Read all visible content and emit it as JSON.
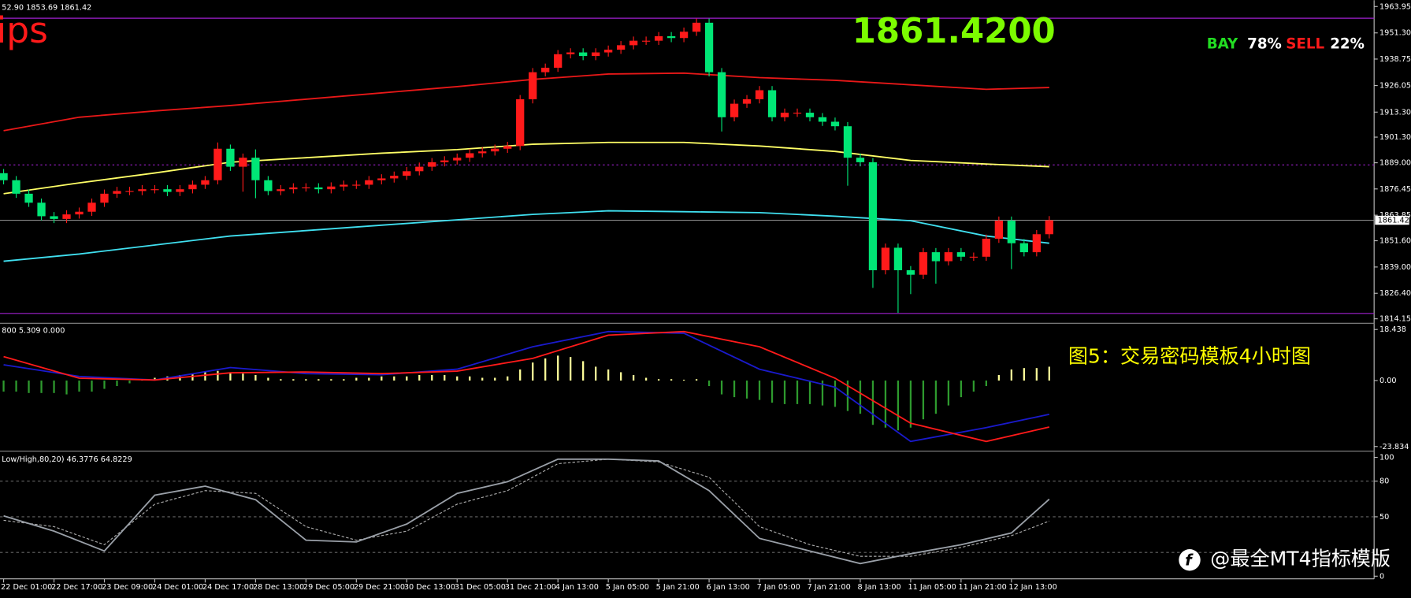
{
  "watermark": "@最全MT4指标模版",
  "chart_data": [
    {
      "type": "candlestick",
      "header": "52.90 1853.69 1861.42",
      "title": "ips",
      "price_display": "1861.4200",
      "sentiment": {
        "buy_label": "BAY",
        "buy_value": "78%",
        "sell_label": "SELL",
        "sell_value": "22%"
      },
      "up_color": "#ff1a1a",
      "down_color": "#00e676",
      "categories": [
        "22 Dec 01:00",
        null,
        null,
        null,
        "22 Dec 17:00",
        null,
        null,
        null,
        "23 Dec 09:00",
        null,
        null,
        null,
        "24 Dec 01:00",
        null,
        null,
        null,
        "24 Dec 17:00",
        null,
        null,
        null,
        "28 Dec 13:00",
        null,
        null,
        null,
        "29 Dec 05:00",
        null,
        null,
        null,
        "29 Dec 21:00",
        null,
        null,
        null,
        "30 Dec 13:00",
        null,
        null,
        null,
        "31 Dec 05:00",
        null,
        null,
        null,
        "31 Dec 21:00",
        null,
        null,
        null,
        "4 Jan 13:00",
        null,
        null,
        null,
        "5 Jan 05:00",
        null,
        null,
        null,
        "5 Jan 21:00",
        null,
        null,
        null,
        "6 Jan 13:00",
        null,
        null,
        null,
        "7 Jan 05:00",
        null,
        null,
        null,
        "7 Jan 21:00",
        null,
        null,
        null,
        "8 Jan 13:00",
        null,
        null,
        null,
        "11 Jan 05:00",
        null,
        null,
        null,
        "11 Jan 21:00",
        null,
        null,
        null,
        "12 Jan 13:00",
        null,
        null,
        null
      ],
      "open": [
        1884.0,
        1880.63,
        1874.16,
        1869.84,
        1863.36,
        1862.07,
        1864.23,
        1865.52,
        1869.84,
        1874.16,
        1875.45,
        1875.45,
        1876.31,
        1876.31,
        1875.02,
        1876.31,
        1878.47,
        1880.63,
        1895.74,
        1887.11,
        1891.42,
        1880.63,
        1875.45,
        1876.31,
        1877.18,
        1877.18,
        1876.31,
        1877.61,
        1878.47,
        1878.47,
        1880.63,
        1881.5,
        1882.79,
        1884.95,
        1887.11,
        1889.27,
        1890.13,
        1891.42,
        1893.58,
        1894.45,
        1895.74,
        1897.04,
        1919.48,
        1932.44,
        1934.59,
        1941.07,
        1941.93,
        1940.21,
        1941.93,
        1943.23,
        1945.39,
        1947.55,
        1947.55,
        1949.7,
        1948.84,
        1951.86,
        1956.18,
        1932.44,
        1910.85,
        1917.33,
        1919.48,
        1923.8,
        1910.85,
        1913.01,
        1913.01,
        1910.85,
        1908.69,
        1906.53,
        1891.42,
        1889.27,
        1837.46,
        1848.25,
        1837.46,
        1835.3,
        1846.1,
        1841.78,
        1846.1,
        1843.94,
        1843.94,
        1852.57,
        1861.21,
        1850.41,
        1846.1,
        1854.73
      ],
      "high": [
        1886.0,
        1882.63,
        1876.16,
        1871.84,
        1865.36,
        1866.23,
        1867.52,
        1871.84,
        1876.16,
        1877.45,
        1877.45,
        1878.31,
        1878.31,
        1878.31,
        1878.31,
        1880.47,
        1882.63,
        1898.74,
        1897.74,
        1893.42,
        1895.42,
        1882.63,
        1878.31,
        1879.18,
        1879.18,
        1879.18,
        1879.61,
        1880.47,
        1880.47,
        1882.63,
        1883.5,
        1884.79,
        1886.95,
        1889.11,
        1891.27,
        1892.13,
        1893.42,
        1895.58,
        1896.45,
        1897.74,
        1899.04,
        1921.48,
        1934.44,
        1936.59,
        1943.07,
        1943.93,
        1943.93,
        1943.93,
        1945.23,
        1947.39,
        1949.55,
        1949.55,
        1951.7,
        1951.7,
        1953.86,
        1958.18,
        1958.18,
        1934.44,
        1919.33,
        1921.48,
        1925.8,
        1925.8,
        1915.01,
        1915.01,
        1915.01,
        1912.85,
        1910.69,
        1908.53,
        1893.42,
        1891.27,
        1850.25,
        1850.25,
        1839.46,
        1848.1,
        1848.1,
        1848.1,
        1848.1,
        1845.94,
        1854.57,
        1863.21,
        1863.21,
        1852.41,
        1856.73,
        1863.42
      ],
      "low": [
        1878.63,
        1872.16,
        1867.84,
        1861.36,
        1860.07,
        1860.07,
        1862.23,
        1863.52,
        1867.84,
        1872.16,
        1873.45,
        1873.45,
        1874.31,
        1873.02,
        1873.02,
        1874.31,
        1876.47,
        1878.63,
        1885.11,
        1875.11,
        1872.0,
        1873.45,
        1873.45,
        1874.31,
        1875.18,
        1874.31,
        1874.31,
        1875.61,
        1876.47,
        1876.47,
        1878.63,
        1879.5,
        1880.79,
        1882.95,
        1885.11,
        1887.27,
        1888.13,
        1889.42,
        1891.58,
        1892.45,
        1893.74,
        1895.04,
        1917.48,
        1930.44,
        1932.59,
        1939.07,
        1938.21,
        1938.21,
        1939.93,
        1941.23,
        1943.39,
        1945.55,
        1945.55,
        1946.84,
        1946.84,
        1949.86,
        1930.44,
        1904.0,
        1908.85,
        1915.33,
        1917.48,
        1908.85,
        1908.85,
        1911.01,
        1908.85,
        1906.69,
        1904.53,
        1878.0,
        1887.27,
        1829.0,
        1835.46,
        1817.0,
        1826.0,
        1833.3,
        1831.0,
        1839.78,
        1841.94,
        1841.94,
        1841.94,
        1850.57,
        1838.0,
        1844.1,
        1844.1,
        1852.73
      ],
      "close": [
        1880.63,
        1874.16,
        1869.84,
        1863.36,
        1862.07,
        1864.23,
        1865.52,
        1869.84,
        1874.16,
        1875.45,
        1875.45,
        1876.31,
        1876.31,
        1875.02,
        1876.31,
        1878.47,
        1880.63,
        1895.74,
        1887.11,
        1891.42,
        1880.63,
        1875.45,
        1876.31,
        1877.18,
        1877.18,
        1876.31,
        1877.61,
        1878.47,
        1878.47,
        1880.63,
        1881.5,
        1882.79,
        1884.95,
        1887.11,
        1889.27,
        1890.13,
        1891.42,
        1893.58,
        1894.45,
        1895.74,
        1897.04,
        1919.48,
        1932.44,
        1934.59,
        1941.07,
        1941.93,
        1940.21,
        1941.93,
        1943.23,
        1945.39,
        1947.55,
        1947.55,
        1949.7,
        1948.84,
        1951.86,
        1956.18,
        1932.44,
        1910.85,
        1917.33,
        1919.48,
        1923.8,
        1910.85,
        1913.01,
        1913.01,
        1910.85,
        1908.69,
        1906.53,
        1891.42,
        1889.27,
        1837.46,
        1848.25,
        1837.46,
        1835.3,
        1846.1,
        1841.78,
        1846.1,
        1843.94,
        1843.94,
        1852.57,
        1861.21,
        1850.41,
        1846.1,
        1854.73,
        1861.42
      ],
      "overlays": [
        {
          "color": "#e81818",
          "x": [
            0,
            6,
            12,
            18,
            24,
            30,
            36,
            42,
            48,
            54,
            60,
            66,
            72,
            78,
            83
          ],
          "values": [
            1904.38,
            1910.85,
            1913.87,
            1916.46,
            1919.48,
            1922.51,
            1925.53,
            1928.98,
            1931.57,
            1932.0,
            1929.85,
            1928.55,
            1926.39,
            1924.23,
            1925.1
          ]
        },
        {
          "color": "#ffff66",
          "x": [
            0,
            6,
            12,
            18,
            24,
            30,
            36,
            42,
            48,
            54,
            60,
            66,
            72,
            78,
            83
          ],
          "values": [
            1874.16,
            1879.34,
            1884.09,
            1889.27,
            1891.42,
            1893.58,
            1895.31,
            1897.9,
            1898.76,
            1898.76,
            1897.04,
            1894.45,
            1890.13,
            1888.4,
            1887.11
          ]
        },
        {
          "color": "#40e0f0",
          "x": [
            0,
            6,
            12,
            18,
            24,
            30,
            36,
            42,
            48,
            54,
            60,
            66,
            72,
            78,
            83
          ],
          "values": [
            1841.78,
            1845.23,
            1849.55,
            1853.87,
            1856.46,
            1859.05,
            1861.64,
            1864.23,
            1865.95,
            1865.52,
            1865.09,
            1863.36,
            1861.21,
            1853.87,
            1850.41
          ]
        }
      ],
      "hlines": [
        {
          "value": 1958.34,
          "color": "#a020d0",
          "dash": false
        },
        {
          "value": 1887.97,
          "color": "#a020d0",
          "dash": true
        },
        {
          "value": 1816.74,
          "color": "#a020d0",
          "dash": false
        }
      ],
      "last_price": {
        "value": 1861.42,
        "label": "1861.42"
      },
      "ylim": [
        1812.43,
        1966.97
      ],
      "yticks": [
        {
          "value": 1963.95,
          "label": "1963.95"
        },
        {
          "value": 1951.3,
          "label": "1951.30"
        },
        {
          "value": 1938.75,
          "label": "1938.75"
        },
        {
          "value": 1926.05,
          "label": "1926.05"
        },
        {
          "value": 1913.3,
          "label": "1913.30"
        },
        {
          "value": 1901.3,
          "label": "1901.30"
        },
        {
          "value": 1889.0,
          "label": "1889.00"
        },
        {
          "value": 1876.45,
          "label": "1876.45"
        },
        {
          "value": 1863.85,
          "label": "1863.85"
        },
        {
          "value": 1851.6,
          "label": "1851.60"
        },
        {
          "value": 1839.0,
          "label": "1839.00"
        },
        {
          "value": 1826.4,
          "label": "1826.40"
        },
        {
          "value": 1814.15,
          "label": "1814.15"
        }
      ]
    },
    {
      "type": "macd",
      "header": "800 5.309 0.000",
      "annotation": "图5：交易密码模板4小时图",
      "pos_color": "#ffff99",
      "neg_color": "#2e9a2e",
      "values": [
        -4,
        -4,
        -4.5,
        -4.5,
        -4.5,
        -5,
        -4,
        -4,
        -3,
        -2,
        -1,
        0.5,
        1,
        1.5,
        2,
        2.5,
        3,
        3.5,
        3,
        2.5,
        2,
        1,
        0.5,
        0.5,
        0.5,
        0.5,
        0.5,
        0.5,
        1,
        1,
        1.5,
        1.5,
        1.5,
        2,
        2,
        2,
        1.5,
        1.5,
        1,
        1,
        1.5,
        4,
        6.5,
        8,
        9,
        8.5,
        7,
        5,
        4,
        3,
        2,
        1,
        0.5,
        0.5,
        0.3,
        0.5,
        -2,
        -5,
        -6,
        -6.5,
        -7,
        -8,
        -8.5,
        -8.5,
        -8.5,
        -9,
        -9.5,
        -11,
        -12,
        -16,
        -17,
        -18,
        -17,
        -14,
        -12,
        -9,
        -6,
        -4,
        -2,
        2,
        4,
        4.5,
        4.5,
        5
      ],
      "series": [
        {
          "color": "#1a1acc",
          "x": [
            0,
            6,
            12,
            18,
            24,
            30,
            36,
            42,
            48,
            54,
            60,
            66,
            72,
            78,
            83
          ],
          "values": [
            5.7,
            1.5,
            0.2,
            4.7,
            2.5,
            2.1,
            4.1,
            12.2,
            17.7,
            17.1,
            4.1,
            -2.4,
            -22.0,
            -17.0,
            -12.2
          ]
        },
        {
          "color": "#ff1a1a",
          "x": [
            0,
            6,
            12,
            18,
            24,
            30,
            36,
            42,
            48,
            54,
            60,
            66,
            72,
            78,
            83
          ],
          "values": [
            8.64,
            0.85,
            0.19,
            2.8,
            3.1,
            2.5,
            3.4,
            8.0,
            16.4,
            17.7,
            12.2,
            0.85,
            -15.4,
            -22.0,
            -16.8
          ]
        }
      ],
      "ylim": [
        -24.5,
        19.7
      ],
      "yticks": [
        18.438,
        {
          "value": 0,
          "label": "0.00"
        },
        -23.834
      ]
    },
    {
      "type": "stochastic",
      "header": "Low/High,80,20) 46.3776 64.8229",
      "series": [
        {
          "color": "#aaaaaa",
          "dash": true,
          "x": [
            0,
            4,
            8,
            12,
            16,
            20,
            24,
            28,
            32,
            36,
            40,
            44,
            48,
            52,
            56,
            60,
            64,
            68,
            72,
            76,
            80,
            83
          ],
          "values": [
            47.0,
            41.7,
            26.5,
            60.6,
            72.0,
            69.7,
            41.7,
            30.3,
            37.9,
            60.6,
            72.0,
            94.7,
            98.5,
            96.2,
            83.3,
            41.7,
            26.5,
            16.7,
            16.7,
            24.2,
            34.1,
            46.4
          ]
        },
        {
          "color": "#9aa0a8",
          "dash": false,
          "x": [
            0,
            4,
            8,
            12,
            16,
            20,
            24,
            28,
            32,
            36,
            40,
            44,
            48,
            52,
            56,
            60,
            64,
            68,
            72,
            76,
            80,
            83
          ],
          "values": [
            50.8,
            37.9,
            21.2,
            68.2,
            75.8,
            64.4,
            30.3,
            28.8,
            43.9,
            69.7,
            79.5,
            98.5,
            98.5,
            97.0,
            72.0,
            31.8,
            21.2,
            10.6,
            18.9,
            26.5,
            36.4,
            64.8
          ]
        }
      ],
      "levels": [
        80,
        50,
        20
      ],
      "ylim": [
        0,
        100
      ],
      "yticks": [
        0,
        50,
        80,
        100
      ]
    }
  ]
}
